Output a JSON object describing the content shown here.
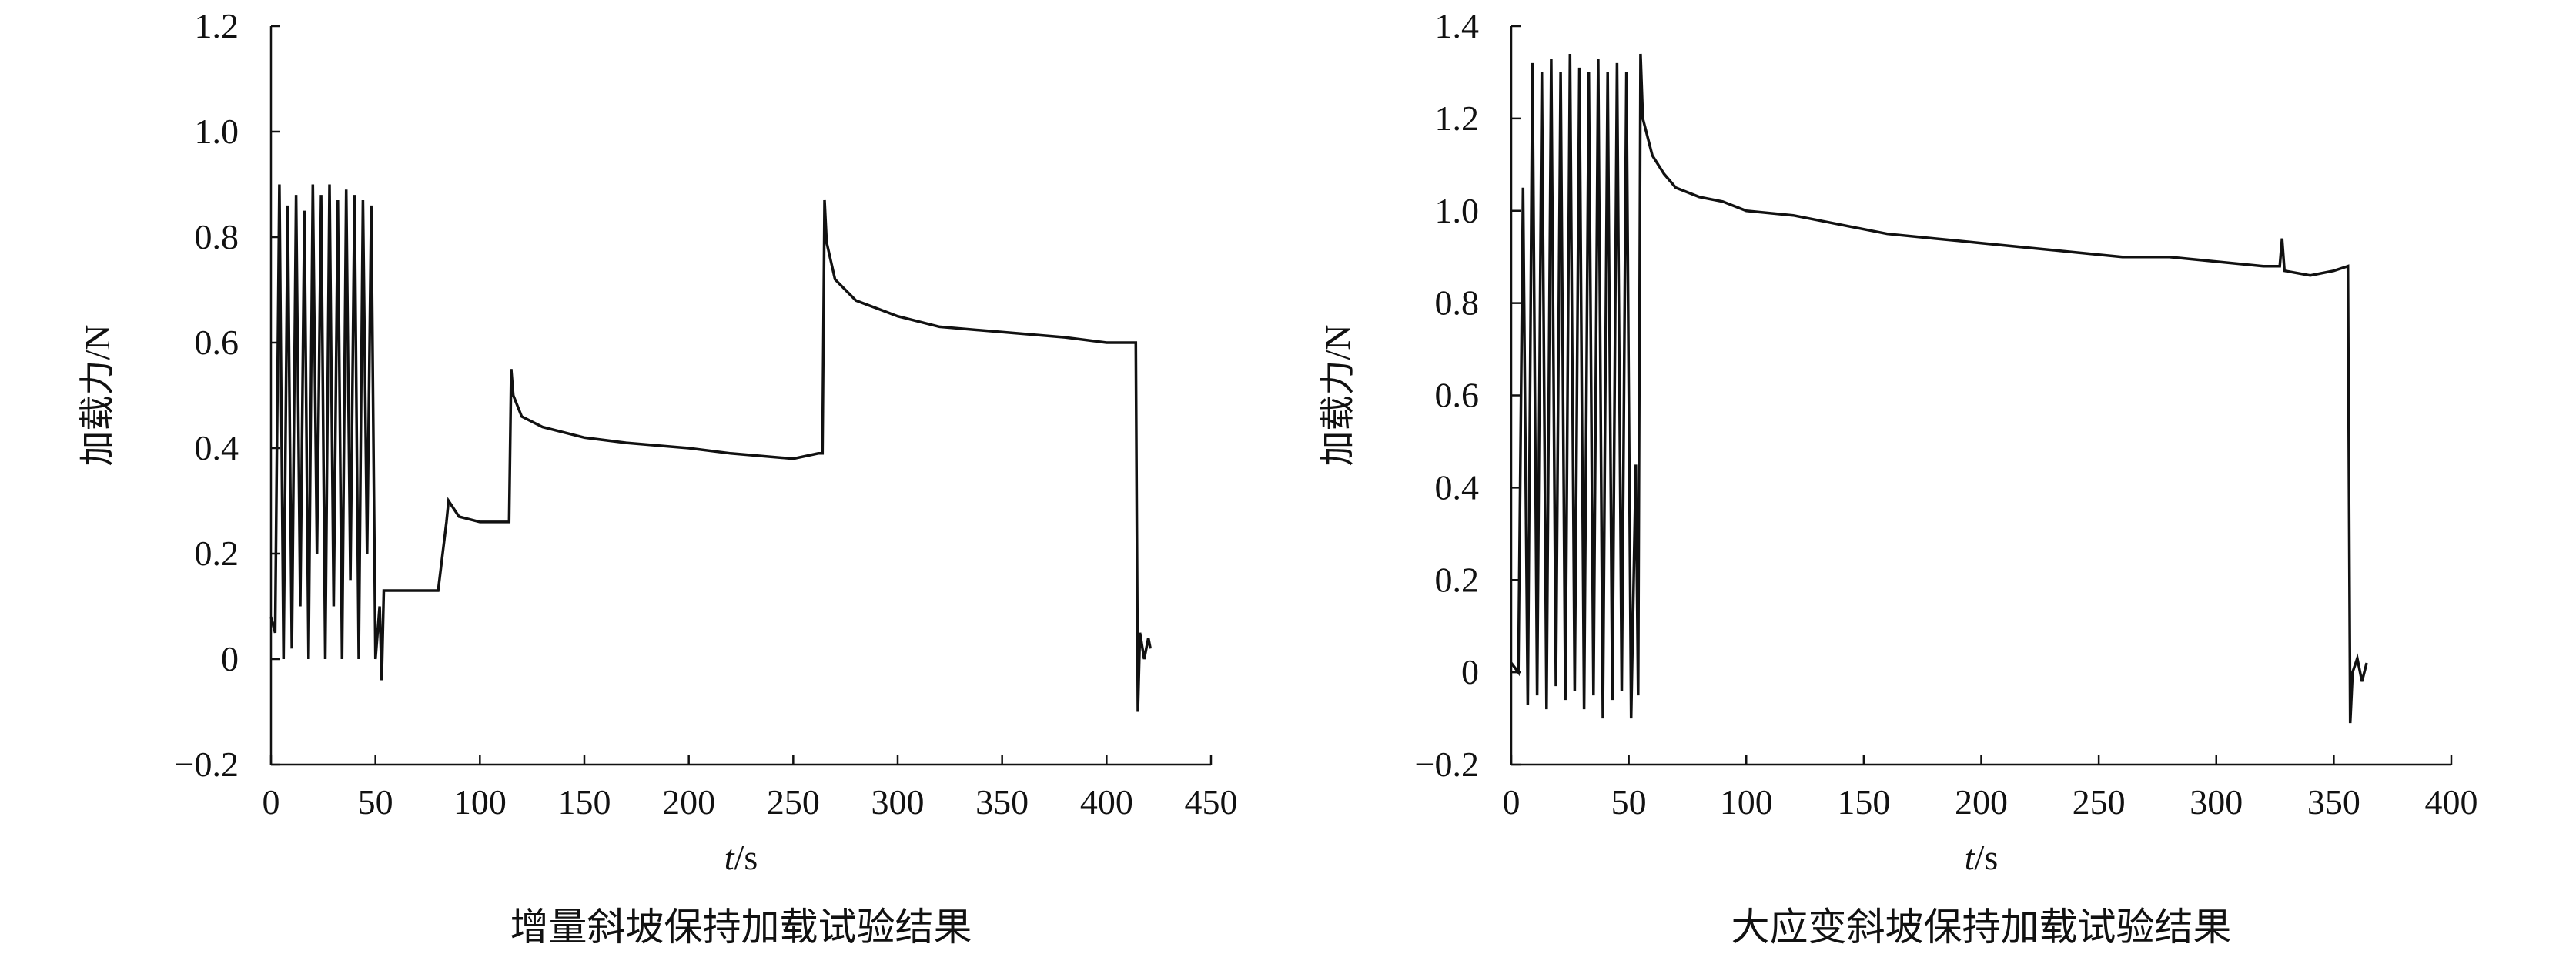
{
  "chart_data": [
    {
      "type": "line",
      "title": "增量斜坡保持加载试验结果",
      "xlabel_italic": "t",
      "xlabel_unit": "/s",
      "ylabel": "加载力/N",
      "xlim": [
        0,
        450
      ],
      "ylim": [
        -0.2,
        1.2
      ],
      "xticks": [
        0,
        50,
        100,
        150,
        200,
        250,
        300,
        350,
        400,
        450
      ],
      "yticks": [
        -0.2,
        0,
        0.2,
        0.4,
        0.6,
        0.8,
        1.0,
        1.2
      ],
      "xtick_labels": [
        "0",
        "50",
        "100",
        "150",
        "200",
        "250",
        "300",
        "350",
        "400",
        "450"
      ],
      "ytick_labels": [
        "−0.2",
        "0",
        "0.2",
        "0.4",
        "0.6",
        "0.8",
        "1.0",
        "1.2"
      ],
      "grid": false,
      "line_color": "#111111",
      "series": [
        {
          "x": [
            0,
            2,
            4,
            6,
            8,
            10,
            12,
            14,
            16,
            18,
            20,
            22,
            24,
            26,
            28,
            30,
            32,
            34,
            36,
            38,
            40,
            42,
            44,
            46,
            48,
            50,
            52,
            53,
            54,
            56,
            60,
            70,
            80,
            84,
            85,
            90,
            100,
            110,
            114,
            115,
            116,
            120,
            130,
            150,
            170,
            200,
            220,
            250,
            262,
            264,
            265,
            266,
            270,
            280,
            300,
            320,
            350,
            380,
            400,
            410,
            414,
            415,
            416,
            418,
            420,
            421
          ],
          "y": [
            0.08,
            0.05,
            0.9,
            0.0,
            0.86,
            0.02,
            0.88,
            0.1,
            0.85,
            0.0,
            0.9,
            0.2,
            0.88,
            0.0,
            0.9,
            0.1,
            0.87,
            0.0,
            0.89,
            0.15,
            0.88,
            0.0,
            0.87,
            0.2,
            0.86,
            0.0,
            0.1,
            -0.04,
            0.13,
            0.13,
            0.13,
            0.13,
            0.13,
            0.26,
            0.3,
            0.27,
            0.26,
            0.26,
            0.26,
            0.55,
            0.5,
            0.46,
            0.44,
            0.42,
            0.41,
            0.4,
            0.39,
            0.38,
            0.39,
            0.39,
            0.87,
            0.79,
            0.72,
            0.68,
            0.65,
            0.63,
            0.62,
            0.61,
            0.6,
            0.6,
            0.6,
            -0.1,
            0.05,
            0.0,
            0.04,
            0.02
          ]
        }
      ]
    },
    {
      "type": "line",
      "title": "大应变斜坡保持加载试验结果",
      "xlabel_italic": "t",
      "xlabel_unit": "/s",
      "ylabel": "加载力/N",
      "xlim": [
        0,
        400
      ],
      "ylim": [
        -0.2,
        1.4
      ],
      "xticks": [
        0,
        50,
        100,
        150,
        200,
        250,
        300,
        350,
        400
      ],
      "yticks": [
        -0.2,
        0,
        0.2,
        0.4,
        0.6,
        0.8,
        1.0,
        1.2,
        1.4
      ],
      "xtick_labels": [
        "0",
        "50",
        "100",
        "150",
        "200",
        "250",
        "300",
        "350",
        "400"
      ],
      "ytick_labels": [
        "−0.2",
        "0",
        "0.2",
        "0.4",
        "0.6",
        "0.8",
        "1.0",
        "1.2",
        "1.4"
      ],
      "grid": false,
      "line_color": "#111111",
      "series": [
        {
          "x": [
            0,
            3,
            5,
            7,
            9,
            11,
            13,
            15,
            17,
            19,
            21,
            23,
            25,
            27,
            29,
            31,
            33,
            35,
            37,
            39,
            41,
            43,
            45,
            47,
            49,
            51,
            53,
            54,
            55,
            56,
            60,
            65,
            70,
            80,
            90,
            100,
            120,
            140,
            150,
            160,
            180,
            200,
            220,
            240,
            260,
            280,
            300,
            320,
            327,
            328,
            329,
            340,
            350,
            356,
            357,
            358,
            360,
            362,
            364
          ],
          "y": [
            0.02,
            0.0,
            1.05,
            -0.07,
            1.32,
            -0.05,
            1.3,
            -0.08,
            1.33,
            -0.03,
            1.3,
            -0.06,
            1.34,
            -0.04,
            1.31,
            -0.08,
            1.3,
            -0.05,
            1.33,
            -0.1,
            1.3,
            -0.06,
            1.32,
            -0.04,
            1.3,
            -0.1,
            0.45,
            -0.05,
            1.34,
            1.2,
            1.12,
            1.08,
            1.05,
            1.03,
            1.02,
            1.0,
            0.99,
            0.97,
            0.96,
            0.95,
            0.94,
            0.93,
            0.92,
            0.91,
            0.9,
            0.9,
            0.89,
            0.88,
            0.88,
            0.94,
            0.87,
            0.86,
            0.87,
            0.88,
            -0.11,
            0.0,
            0.03,
            -0.02,
            0.02
          ]
        }
      ]
    }
  ]
}
